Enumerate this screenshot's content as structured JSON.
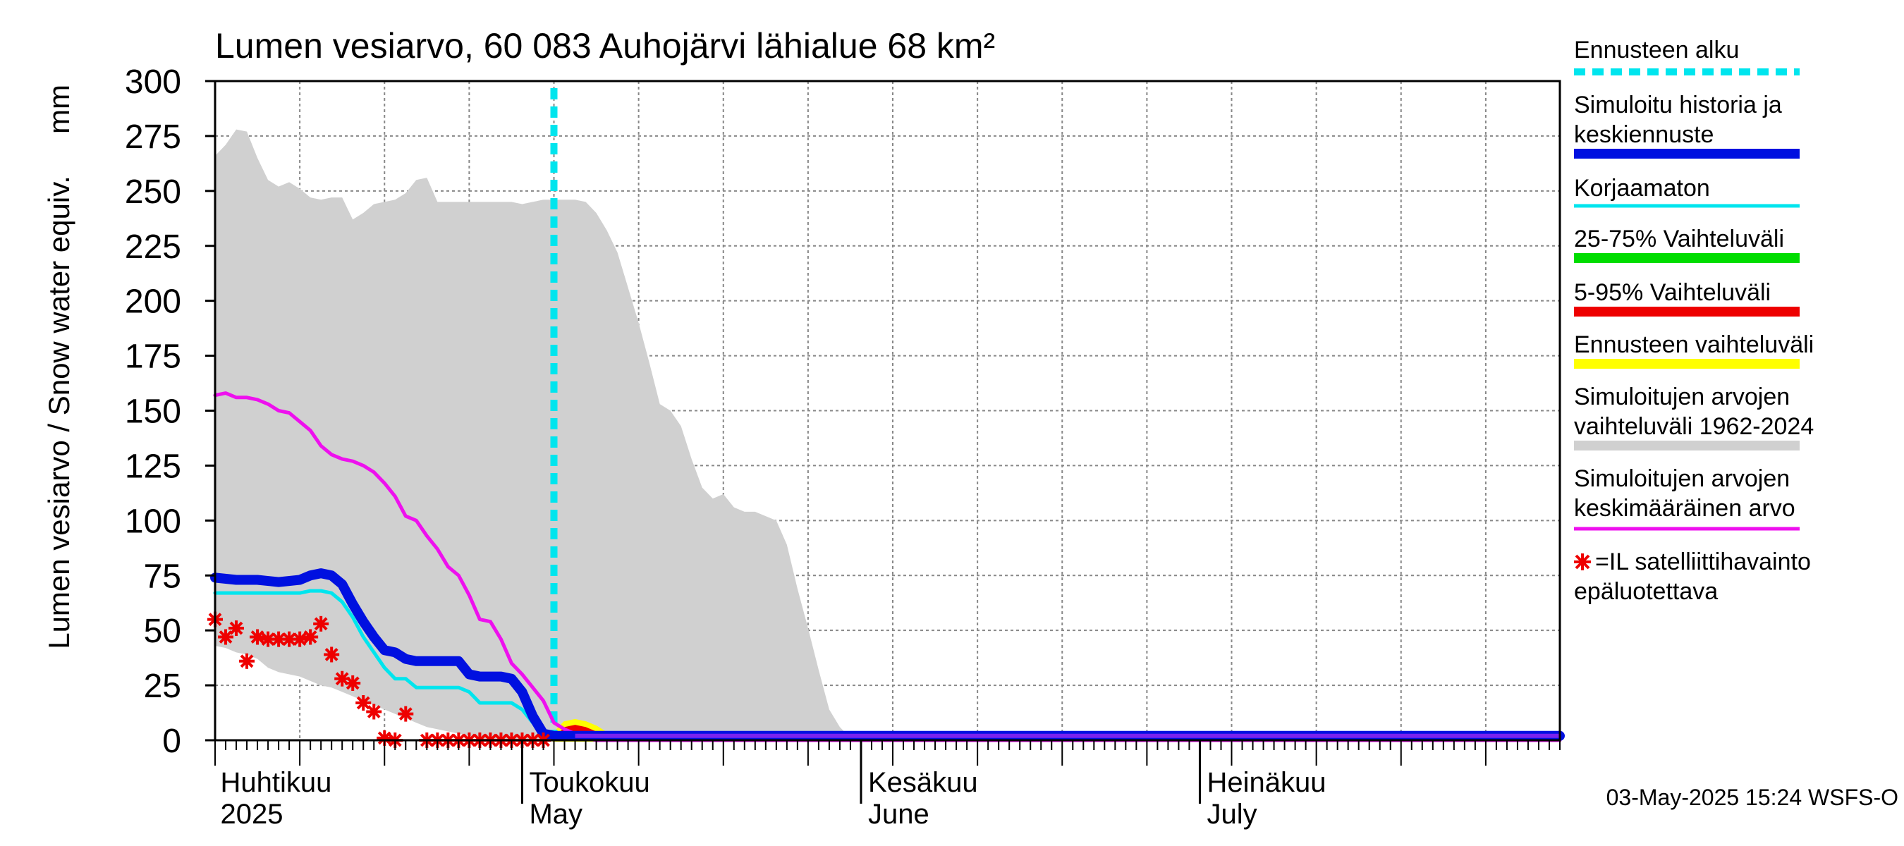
{
  "chart_data": {
    "type": "area",
    "title": "Lumen vesiarvo, 60 083 Auhojärvi lähialue 68 km²",
    "ylabel": "Lumen vesiarvo / Snow water equiv.",
    "yunit": "mm",
    "ylim": [
      0,
      300
    ],
    "yticks": [
      0,
      25,
      50,
      75,
      100,
      125,
      150,
      175,
      200,
      225,
      250,
      275,
      300
    ],
    "xlim_days": [
      0,
      127
    ],
    "grid": true,
    "month_labels": [
      {
        "day": 2,
        "fi": "Huhtikuu",
        "en": "2025"
      },
      {
        "day": 31,
        "fi": "Toukokuu",
        "en": "May"
      },
      {
        "day": 63,
        "fi": "Kesäkuu",
        "en": "June"
      },
      {
        "day": 95,
        "fi": "Heinäkuu",
        "en": "July"
      }
    ],
    "forecast_start_day": 32,
    "legend": [
      {
        "label": "Ennusteen alku",
        "color": "#00e5ee",
        "style": "dotted"
      },
      {
        "label": "Simuloitu historia ja keskiennuste",
        "color": "#0010e0",
        "style": "thick"
      },
      {
        "label": "Korjaamaton",
        "color": "#00e5ee",
        "style": "line"
      },
      {
        "label": "25-75% Vaihteluväli",
        "color": "#00dd00",
        "style": "thick"
      },
      {
        "label": "5-95% Vaihteluväli",
        "color": "#ee0000",
        "style": "thick"
      },
      {
        "label": "Ennusteen vaihteluväli",
        "color": "#ffff00",
        "style": "thick"
      },
      {
        "label": "Simuloitujen arvojen vaihteluväli 1962-2024",
        "color": "#d0d0d0",
        "style": "thick"
      },
      {
        "label": "Simuloitujen arvojen keskimääräinen arvo",
        "color": "#ee10ee",
        "style": "line"
      },
      {
        "label": "=IL satelliittihavainto epäluotettava",
        "color": "#ee0000",
        "style": "star"
      }
    ],
    "series": [
      {
        "name": "Simuloitujen arvojen vaihteluväli 1962-2024",
        "color": "#d0d0d0",
        "x": [
          0,
          1,
          2,
          3,
          4,
          5,
          6,
          7,
          8,
          9,
          10,
          11,
          12,
          13,
          14,
          15,
          16,
          17,
          18,
          19,
          20,
          21,
          22,
          23,
          24,
          25,
          26,
          27,
          28,
          29,
          30,
          31,
          32,
          33,
          34,
          35,
          36,
          37,
          38,
          39,
          40,
          41,
          42,
          43,
          44,
          45,
          46,
          47,
          48,
          49,
          50,
          51,
          52,
          53,
          54,
          55,
          56,
          57,
          58,
          59,
          60,
          62,
          64,
          66,
          70,
          74,
          77,
          78,
          79,
          80,
          84,
          90,
          100,
          110,
          120,
          127
        ],
        "upper": [
          266,
          271,
          278,
          277,
          265,
          255,
          252,
          254,
          251,
          247,
          246,
          247,
          247,
          237,
          240,
          244,
          245,
          246,
          249,
          255,
          256,
          245,
          245,
          245,
          245,
          245,
          245,
          245,
          245,
          244,
          245,
          246,
          246,
          246,
          246,
          245,
          240,
          232,
          222,
          206,
          190,
          172,
          153,
          150,
          143,
          128,
          115,
          110,
          112,
          106,
          104,
          104,
          102,
          100,
          89,
          69,
          51,
          32,
          14,
          6,
          1,
          0,
          0,
          0,
          0,
          0,
          0,
          0,
          0,
          0,
          0,
          0,
          0,
          0,
          0,
          0
        ],
        "lower": [
          43,
          42,
          40,
          39,
          37,
          33,
          31,
          30,
          29,
          27,
          25,
          24,
          22,
          20,
          18,
          16,
          14,
          12,
          10,
          8,
          6,
          5,
          4,
          3,
          2,
          1,
          0,
          0,
          0,
          0,
          0,
          0,
          0,
          0,
          0,
          0,
          0,
          0,
          0,
          0,
          0,
          0,
          0,
          0,
          0,
          0,
          0,
          0,
          0,
          0,
          0,
          0,
          0,
          0,
          0,
          0,
          0,
          0,
          0,
          0,
          0,
          0,
          0,
          0,
          0,
          0,
          0,
          0,
          0,
          0,
          0,
          0,
          0,
          0,
          0,
          0
        ]
      },
      {
        "name": "Simuloitujen arvojen keskimääräinen arvo",
        "color": "#ee10ee",
        "x": [
          0,
          1,
          2,
          3,
          4,
          5,
          6,
          7,
          8,
          9,
          10,
          11,
          12,
          13,
          14,
          15,
          16,
          17,
          18,
          19,
          20,
          21,
          22,
          23,
          24,
          25,
          26,
          27,
          28,
          29,
          30,
          31,
          32,
          33,
          34,
          35,
          36,
          37,
          38,
          40,
          127
        ],
        "values": [
          157,
          158,
          156,
          156,
          155,
          153,
          150,
          149,
          145,
          141,
          134,
          130,
          128,
          127,
          125,
          122,
          117,
          111,
          102,
          100,
          93,
          87,
          79,
          75,
          66,
          55,
          54,
          46,
          35,
          30,
          24,
          18,
          8,
          5,
          3,
          1,
          0,
          0,
          0,
          0,
          0
        ]
      },
      {
        "name": "Korjaamaton",
        "color": "#00e5ee",
        "x": [
          0,
          2,
          4,
          6,
          8,
          9,
          10,
          11,
          12,
          13,
          14,
          15,
          16,
          17,
          18,
          19,
          20,
          21,
          22,
          23,
          24,
          25,
          26,
          27,
          28,
          29,
          30,
          31,
          32,
          127
        ],
        "values": [
          67,
          67,
          67,
          67,
          67,
          68,
          68,
          67,
          63,
          56,
          47,
          40,
          33,
          28,
          28,
          24,
          24,
          24,
          24,
          24,
          22,
          17,
          17,
          17,
          17,
          14,
          8,
          3,
          2,
          2
        ]
      },
      {
        "name": "Simuloitu historia ja keskiennuste",
        "color": "#0010e0",
        "x": [
          0,
          2,
          4,
          6,
          8,
          9,
          10,
          11,
          12,
          13,
          14,
          15,
          16,
          17,
          18,
          19,
          20,
          21,
          22,
          23,
          24,
          25,
          26,
          27,
          28,
          29,
          30,
          31,
          32,
          127
        ],
        "values": [
          74,
          73,
          73,
          72,
          73,
          75,
          76,
          75,
          71,
          62,
          54,
          47,
          41,
          40,
          37,
          36,
          36,
          36,
          36,
          36,
          30,
          29,
          29,
          29,
          28,
          22,
          11,
          3,
          2,
          2
        ]
      }
    ],
    "forecast_band": {
      "name": "Ennusteen vaihteluväli",
      "x": [
        32,
        33,
        34,
        35,
        36,
        37,
        38,
        127
      ],
      "upper": [
        3,
        8,
        9,
        8,
        6,
        3,
        1,
        1
      ],
      "lower": [
        0,
        0,
        0,
        0,
        0,
        0,
        0,
        0
      ]
    },
    "satellite_obs": {
      "name": "=IL satelliittihavainto epäluotettava",
      "color": "#ee0000",
      "x": [
        0,
        1,
        2,
        3,
        4,
        5,
        6,
        7,
        8,
        9,
        10,
        11,
        12,
        13,
        14,
        15,
        16,
        17,
        18,
        20,
        21,
        22,
        23,
        24,
        25,
        26,
        27,
        28,
        29,
        30,
        31
      ],
      "values": [
        55,
        47,
        51,
        36,
        47,
        46,
        46,
        46,
        46,
        47,
        53,
        39,
        28,
        26,
        17,
        13,
        1,
        0,
        12,
        0,
        0,
        0,
        0,
        0,
        0,
        0,
        0,
        0,
        0,
        0,
        0
      ]
    },
    "timestamp": "03-May-2025 15:24 WSFS-O"
  }
}
